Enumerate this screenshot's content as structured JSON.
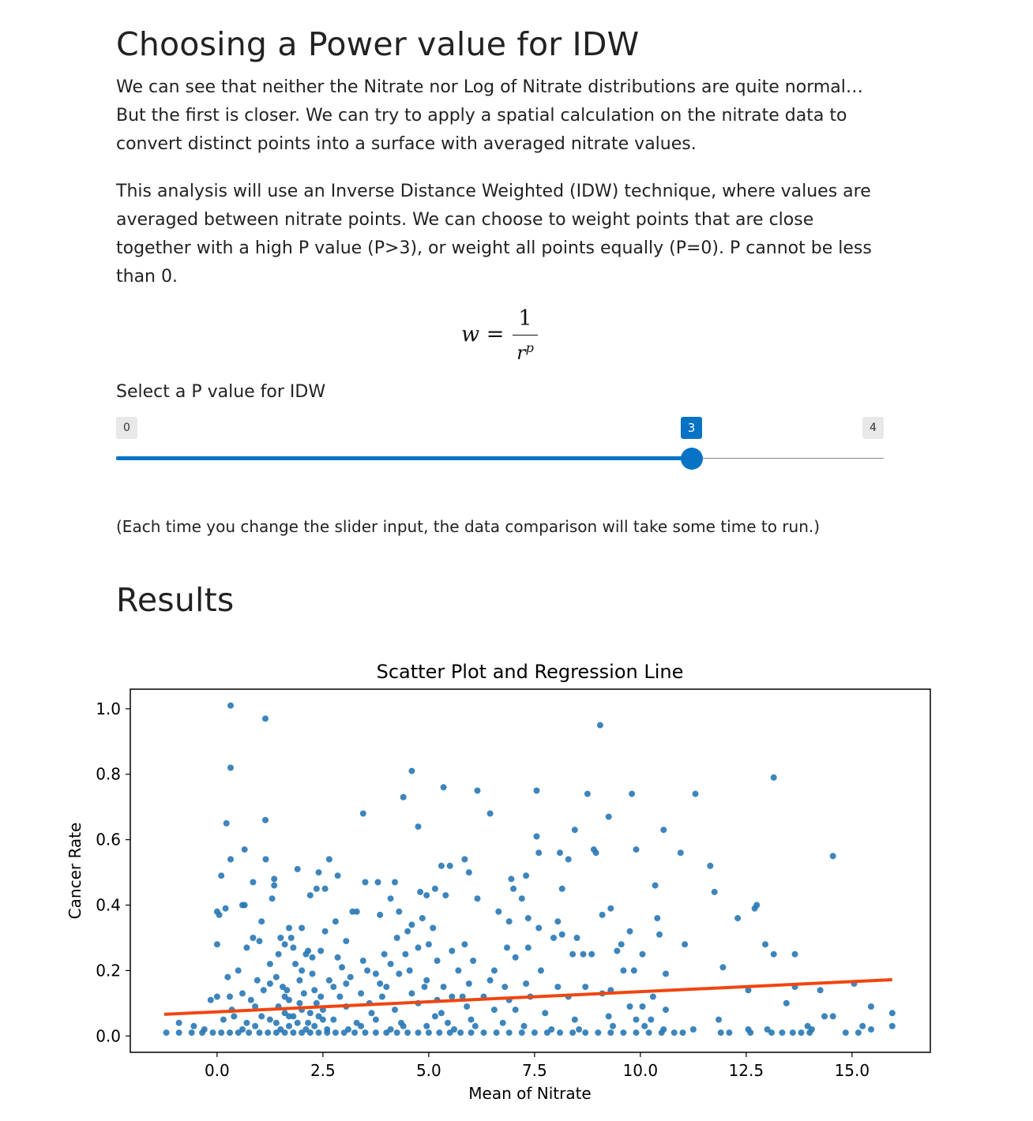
{
  "page": {
    "heading1": "Choosing a Power value for IDW",
    "paragraph1": "We can see that neither the Nitrate nor Log of Nitrate distributions are quite normal… But the first is closer. We can try to apply a spatial calculation on the nitrate data to convert distinct points into a surface with averaged nitrate values.",
    "paragraph2": "This analysis will use an Inverse Distance Weighted (IDW) technique, where values are averaged between nitrate points. We can choose to weight points that are close together with a high P value (P>3), or weight all points equally (P=0). P cannot be less than 0.",
    "formula": {
      "lhs": "w =",
      "numerator": "1",
      "denominator_base": "r",
      "denominator_exponent": "p"
    },
    "slider": {
      "label": "Select a P value for IDW",
      "min": 0,
      "max": 4,
      "value": 3,
      "min_label": "0",
      "max_label": "4",
      "value_label": "3",
      "accent_color": "#0873c4"
    },
    "note": "(Each time you change the slider input, the data comparison will take some time to run.)",
    "heading2": "Results"
  },
  "chart_data": {
    "type": "scatter",
    "title": "Scatter Plot and Regression Line",
    "xlabel": "Mean of Nitrate",
    "ylabel": "Cancer Rate",
    "xlim": [
      -2.05,
      16.85
    ],
    "ylim": [
      -0.05,
      1.06
    ],
    "xticks": [
      "0.0",
      "2.5",
      "5.0",
      "7.5",
      "10.0",
      "12.5",
      "15.0"
    ],
    "yticks": [
      "0.0",
      "0.2",
      "0.4",
      "0.6",
      "0.8",
      "1.0"
    ],
    "point_color": "#2878b5",
    "line_color": "#f0460f",
    "regression_line": {
      "x": [
        -1.25,
        15.95
      ],
      "y": [
        0.066,
        0.172
      ]
    },
    "points": [
      [
        0.32,
        1.01
      ],
      [
        1.14,
        0.97
      ],
      [
        0.32,
        0.82
      ],
      [
        9.05,
        0.95
      ],
      [
        4.6,
        0.81
      ],
      [
        13.15,
        0.79
      ],
      [
        5.35,
        0.76
      ],
      [
        6.15,
        0.75
      ],
      [
        7.55,
        0.75
      ],
      [
        8.75,
        0.74
      ],
      [
        9.8,
        0.74
      ],
      [
        11.3,
        0.74
      ],
      [
        4.4,
        0.73
      ],
      [
        6.45,
        0.68
      ],
      [
        3.45,
        0.68
      ],
      [
        9.25,
        0.67
      ],
      [
        1.14,
        0.66
      ],
      [
        0.22,
        0.65
      ],
      [
        4.75,
        0.64
      ],
      [
        10.55,
        0.63
      ],
      [
        8.45,
        0.63
      ],
      [
        7.55,
        0.61
      ],
      [
        0.65,
        0.57
      ],
      [
        7.6,
        0.56
      ],
      [
        8.1,
        0.56
      ],
      [
        8.9,
        0.57
      ],
      [
        8.95,
        0.56
      ],
      [
        9.9,
        0.57
      ],
      [
        10.95,
        0.56
      ],
      [
        14.55,
        0.55
      ],
      [
        8.3,
        0.54
      ],
      [
        1.15,
        0.54
      ],
      [
        0.32,
        0.54
      ],
      [
        2.65,
        0.54
      ],
      [
        5.85,
        0.54
      ],
      [
        5.3,
        0.52
      ],
      [
        5.5,
        0.52
      ],
      [
        11.65,
        0.52
      ],
      [
        0.1,
        0.49
      ],
      [
        1.9,
        0.51
      ],
      [
        2.4,
        0.5
      ],
      [
        2.85,
        0.49
      ],
      [
        4.2,
        0.47
      ],
      [
        3.5,
        0.47
      ],
      [
        7.3,
        0.49
      ],
      [
        6.95,
        0.48
      ],
      [
        8.15,
        0.45
      ],
      [
        7.0,
        0.45
      ],
      [
        5.15,
        0.45
      ],
      [
        4.8,
        0.44
      ],
      [
        3.8,
        0.47
      ],
      [
        5.95,
        0.5
      ],
      [
        1.35,
        0.48
      ],
      [
        0.85,
        0.47
      ],
      [
        10.35,
        0.46
      ],
      [
        1.35,
        0.46
      ],
      [
        12.75,
        0.4
      ],
      [
        11.75,
        0.44
      ],
      [
        12.7,
        0.39
      ],
      [
        0.2,
        0.39
      ],
      [
        1.3,
        0.42
      ],
      [
        2.2,
        0.43
      ],
      [
        2.35,
        0.45
      ],
      [
        2.55,
        0.45
      ],
      [
        0.0,
        0.38
      ],
      [
        0.65,
        0.4
      ],
      [
        4.1,
        0.42
      ],
      [
        4.95,
        0.43
      ],
      [
        5.4,
        0.43
      ],
      [
        6.15,
        0.42
      ],
      [
        7.2,
        0.42
      ],
      [
        8.05,
        0.35
      ],
      [
        9.3,
        0.39
      ],
      [
        9.1,
        0.37
      ],
      [
        10.4,
        0.36
      ],
      [
        12.3,
        0.36
      ],
      [
        0.05,
        0.37
      ],
      [
        0.6,
        0.4
      ],
      [
        1.05,
        0.35
      ],
      [
        3.2,
        0.38
      ],
      [
        3.85,
        0.37
      ],
      [
        4.3,
        0.38
      ],
      [
        4.85,
        0.36
      ],
      [
        5.1,
        0.33
      ],
      [
        6.65,
        0.38
      ],
      [
        6.9,
        0.35
      ],
      [
        7.35,
        0.36
      ],
      [
        0.85,
        0.3
      ],
      [
        1.5,
        0.3
      ],
      [
        1.7,
        0.33
      ],
      [
        2.8,
        0.35
      ],
      [
        3.3,
        0.38
      ],
      [
        4.6,
        0.34
      ],
      [
        4.5,
        0.32
      ],
      [
        4.25,
        0.3
      ],
      [
        7.6,
        0.33
      ],
      [
        8.15,
        0.31
      ],
      [
        9.75,
        0.32
      ],
      [
        10.45,
        0.31
      ],
      [
        8.85,
        0.25
      ],
      [
        0.0,
        0.28
      ],
      [
        1.0,
        0.29
      ],
      [
        1.6,
        0.28
      ],
      [
        2.1,
        0.25
      ],
      [
        2.45,
        0.26
      ],
      [
        3.05,
        0.29
      ],
      [
        3.45,
        0.23
      ],
      [
        4.75,
        0.27
      ],
      [
        5.0,
        0.28
      ],
      [
        5.55,
        0.26
      ],
      [
        5.85,
        0.28
      ],
      [
        6.85,
        0.27
      ],
      [
        7.35,
        0.27
      ],
      [
        7.95,
        0.3
      ],
      [
        8.5,
        0.3
      ],
      [
        9.55,
        0.28
      ],
      [
        9.45,
        0.26
      ],
      [
        10.05,
        0.25
      ],
      [
        11.05,
        0.28
      ],
      [
        12.95,
        0.28
      ],
      [
        13.15,
        0.25
      ],
      [
        13.65,
        0.25
      ],
      [
        0.7,
        0.27
      ],
      [
        1.25,
        0.22
      ],
      [
        1.8,
        0.27
      ],
      [
        2.25,
        0.24
      ],
      [
        2.85,
        0.24
      ],
      [
        3.55,
        0.2
      ],
      [
        3.95,
        0.25
      ],
      [
        4.1,
        0.22
      ],
      [
        4.45,
        0.25
      ],
      [
        5.2,
        0.23
      ],
      [
        5.7,
        0.2
      ],
      [
        6.05,
        0.23
      ],
      [
        6.55,
        0.2
      ],
      [
        7.05,
        0.24
      ],
      [
        7.65,
        0.2
      ],
      [
        8.4,
        0.25
      ],
      [
        8.65,
        0.25
      ],
      [
        9.6,
        0.2
      ],
      [
        9.85,
        0.2
      ],
      [
        10.6,
        0.19
      ],
      [
        11.95,
        0.21
      ],
      [
        0.25,
        0.18
      ],
      [
        0.5,
        0.2
      ],
      [
        0.95,
        0.17
      ],
      [
        1.4,
        0.18
      ],
      [
        2.0,
        0.2
      ],
      [
        2.65,
        0.17
      ],
      [
        3.15,
        0.18
      ],
      [
        3.85,
        0.16
      ],
      [
        4.3,
        0.19
      ],
      [
        4.95,
        0.17
      ],
      [
        5.35,
        0.15
      ],
      [
        5.95,
        0.16
      ],
      [
        6.45,
        0.17
      ],
      [
        6.8,
        0.15
      ],
      [
        7.3,
        0.16
      ],
      [
        8.05,
        0.15
      ],
      [
        8.7,
        0.15
      ],
      [
        9.3,
        0.14
      ],
      [
        10.3,
        0.12
      ],
      [
        12.55,
        0.14
      ],
      [
        13.65,
        0.15
      ],
      [
        14.25,
        0.14
      ],
      [
        15.05,
        0.16
      ],
      [
        0.0,
        0.12
      ],
      [
        0.6,
        0.13
      ],
      [
        1.1,
        0.14
      ],
      [
        1.6,
        0.12
      ],
      [
        2.3,
        0.14
      ],
      [
        2.9,
        0.12
      ],
      [
        3.4,
        0.13
      ],
      [
        3.9,
        0.12
      ],
      [
        4.6,
        0.13
      ],
      [
        5.2,
        0.11
      ],
      [
        5.8,
        0.12
      ],
      [
        6.3,
        0.12
      ],
      [
        6.9,
        0.11
      ],
      [
        7.4,
        0.12
      ],
      [
        8.3,
        0.12
      ],
      [
        9.1,
        0.13
      ],
      [
        9.75,
        0.09
      ],
      [
        10.05,
        0.09
      ],
      [
        10.6,
        0.08
      ],
      [
        13.45,
        0.1
      ],
      [
        15.45,
        0.09
      ],
      [
        15.95,
        0.07
      ],
      [
        -0.15,
        0.11
      ],
      [
        0.35,
        0.08
      ],
      [
        0.9,
        0.09
      ],
      [
        1.45,
        0.09
      ],
      [
        1.95,
        0.1
      ],
      [
        2.5,
        0.08
      ],
      [
        3.05,
        0.09
      ],
      [
        3.65,
        0.07
      ],
      [
        4.2,
        0.08
      ],
      [
        4.75,
        0.1
      ],
      [
        5.3,
        0.07
      ],
      [
        5.9,
        0.09
      ],
      [
        6.55,
        0.08
      ],
      [
        7.05,
        0.08
      ],
      [
        7.75,
        0.07
      ],
      [
        8.45,
        0.05
      ],
      [
        9.25,
        0.06
      ],
      [
        9.9,
        0.05
      ],
      [
        10.25,
        0.05
      ],
      [
        11.85,
        0.05
      ],
      [
        13.95,
        0.03
      ],
      [
        14.35,
        0.06
      ],
      [
        14.55,
        0.06
      ],
      [
        15.25,
        0.03
      ],
      [
        -0.9,
        0.04
      ],
      [
        -0.55,
        0.03
      ],
      [
        -0.3,
        0.02
      ],
      [
        0.15,
        0.05
      ],
      [
        0.7,
        0.04
      ],
      [
        1.25,
        0.05
      ],
      [
        1.7,
        0.06
      ],
      [
        2.15,
        0.04
      ],
      [
        2.75,
        0.05
      ],
      [
        3.3,
        0.04
      ],
      [
        3.75,
        0.05
      ],
      [
        4.35,
        0.04
      ],
      [
        4.95,
        0.03
      ],
      [
        5.45,
        0.04
      ],
      [
        6.1,
        0.03
      ],
      [
        6.75,
        0.04
      ],
      [
        7.25,
        0.03
      ],
      [
        7.9,
        0.02
      ],
      [
        8.55,
        0.02
      ],
      [
        9.35,
        0.03
      ],
      [
        10.1,
        0.03
      ],
      [
        10.55,
        0.02
      ],
      [
        11.25,
        0.02
      ],
      [
        12.55,
        0.02
      ],
      [
        13.0,
        0.02
      ],
      [
        14.05,
        0.02
      ],
      [
        15.45,
        0.02
      ],
      [
        15.95,
        0.03
      ],
      [
        -1.2,
        0.01
      ],
      [
        -0.9,
        0.01
      ],
      [
        -0.6,
        0.01
      ],
      [
        -0.35,
        0.01
      ],
      [
        -0.1,
        0.01
      ],
      [
        0.1,
        0.01
      ],
      [
        0.3,
        0.01
      ],
      [
        0.5,
        0.01
      ],
      [
        0.75,
        0.01
      ],
      [
        1.0,
        0.01
      ],
      [
        1.2,
        0.01
      ],
      [
        1.4,
        0.01
      ],
      [
        1.6,
        0.01
      ],
      [
        1.8,
        0.01
      ],
      [
        2.0,
        0.01
      ],
      [
        2.2,
        0.01
      ],
      [
        2.4,
        0.01
      ],
      [
        2.6,
        0.01
      ],
      [
        2.8,
        0.01
      ],
      [
        3.0,
        0.01
      ],
      [
        3.25,
        0.01
      ],
      [
        3.5,
        0.01
      ],
      [
        3.75,
        0.01
      ],
      [
        4.0,
        0.01
      ],
      [
        4.25,
        0.01
      ],
      [
        4.5,
        0.01
      ],
      [
        4.75,
        0.01
      ],
      [
        5.0,
        0.01
      ],
      [
        5.25,
        0.01
      ],
      [
        5.5,
        0.01
      ],
      [
        5.75,
        0.01
      ],
      [
        6.0,
        0.01
      ],
      [
        6.3,
        0.01
      ],
      [
        6.6,
        0.01
      ],
      [
        6.9,
        0.01
      ],
      [
        7.2,
        0.01
      ],
      [
        7.5,
        0.01
      ],
      [
        7.8,
        0.01
      ],
      [
        8.1,
        0.01
      ],
      [
        8.4,
        0.01
      ],
      [
        8.7,
        0.01
      ],
      [
        9.0,
        0.01
      ],
      [
        9.3,
        0.01
      ],
      [
        9.6,
        0.01
      ],
      [
        9.9,
        0.01
      ],
      [
        10.2,
        0.01
      ],
      [
        10.5,
        0.01
      ],
      [
        10.8,
        0.01
      ],
      [
        11.0,
        0.01
      ],
      [
        11.9,
        0.01
      ],
      [
        12.1,
        0.01
      ],
      [
        12.6,
        0.01
      ],
      [
        13.1,
        0.01
      ],
      [
        13.35,
        0.01
      ],
      [
        13.6,
        0.01
      ],
      [
        13.8,
        0.01
      ],
      [
        14.0,
        0.01
      ],
      [
        14.85,
        0.01
      ],
      [
        15.15,
        0.01
      ],
      [
        1.5,
        0.02
      ],
      [
        1.7,
        0.03
      ],
      [
        1.9,
        0.04
      ],
      [
        2.1,
        0.02
      ],
      [
        2.3,
        0.03
      ],
      [
        2.5,
        0.05
      ],
      [
        1.6,
        0.07
      ],
      [
        1.8,
        0.06
      ],
      [
        2.0,
        0.08
      ],
      [
        2.2,
        0.07
      ],
      [
        2.4,
        0.06
      ],
      [
        1.7,
        0.11
      ],
      [
        2.05,
        0.13
      ],
      [
        2.35,
        0.1
      ],
      [
        1.55,
        0.15
      ],
      [
        1.95,
        0.17
      ],
      [
        2.25,
        0.19
      ],
      [
        1.85,
        0.22
      ],
      [
        2.15,
        0.26
      ],
      [
        1.65,
        0.14
      ],
      [
        2.45,
        0.12
      ],
      [
        1.4,
        0.04
      ],
      [
        2.6,
        0.02
      ],
      [
        0.6,
        0.02
      ],
      [
        0.9,
        0.03
      ],
      [
        3.1,
        0.02
      ],
      [
        3.4,
        0.03
      ],
      [
        4.1,
        0.02
      ],
      [
        4.4,
        0.03
      ],
      [
        5.6,
        0.02
      ],
      [
        1.05,
        0.06
      ],
      [
        0.4,
        0.06
      ],
      [
        3.6,
        0.1
      ],
      [
        2.75,
        0.15
      ],
      [
        1.25,
        0.16
      ],
      [
        0.3,
        0.12
      ],
      [
        0.8,
        0.11
      ],
      [
        2.95,
        0.21
      ],
      [
        1.75,
        0.3
      ],
      [
        2.0,
        0.33
      ],
      [
        1.45,
        0.25
      ],
      [
        2.55,
        0.32
      ],
      [
        4.55,
        0.2
      ],
      [
        5.15,
        0.06
      ],
      [
        6.0,
        0.05
      ],
      [
        3.05,
        0.16
      ],
      [
        3.75,
        0.19
      ],
      [
        4.0,
        0.15
      ],
      [
        4.9,
        0.15
      ],
      [
        5.55,
        0.12
      ]
    ]
  }
}
